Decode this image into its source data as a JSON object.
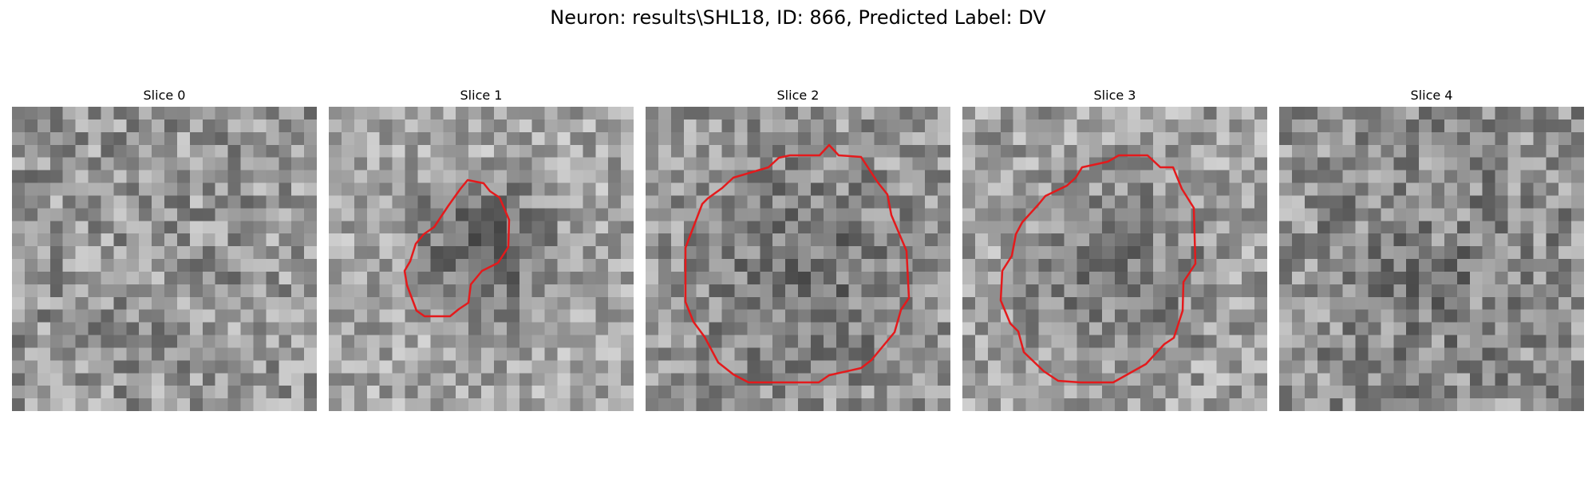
{
  "figure": {
    "title": "Neuron: results\\SHL18, ID: 866, Predicted Label: DV"
  },
  "slices": [
    {
      "label": "Slice 0",
      "has_contour": false
    },
    {
      "label": "Slice 1",
      "has_contour": true
    },
    {
      "label": "Slice 2",
      "has_contour": true
    },
    {
      "label": "Slice 3",
      "has_contour": true
    },
    {
      "label": "Slice 4",
      "has_contour": false
    }
  ],
  "colors": {
    "contour": "#e41a1c",
    "colormap": "gray"
  }
}
